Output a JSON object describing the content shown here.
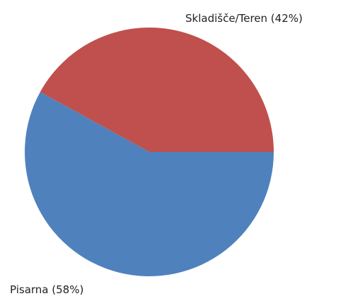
{
  "chart_data": {
    "type": "pie",
    "categories": [
      "Skladišče/Teren",
      "Pisarna"
    ],
    "values": [
      42,
      58
    ],
    "value_labels": [
      "(42%)",
      "(58%)"
    ],
    "colors": [
      "#c0504d",
      "#4f81bd"
    ]
  }
}
